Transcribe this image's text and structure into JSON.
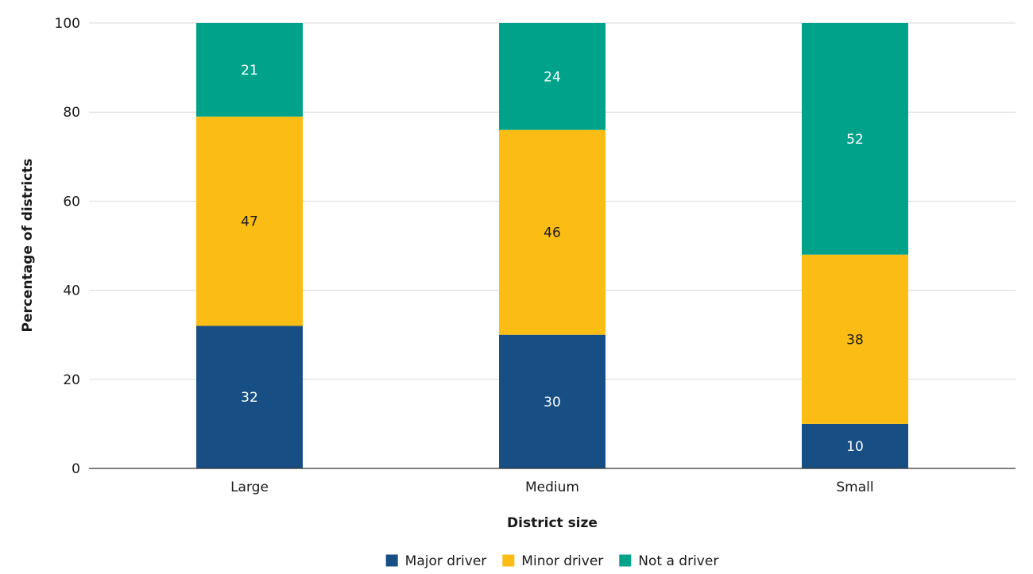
{
  "chart_data": {
    "type": "bar",
    "stacked": true,
    "categories": [
      "Large",
      "Medium",
      "Small"
    ],
    "series": [
      {
        "name": "Major driver",
        "values": [
          32,
          30,
          10
        ],
        "color": "#174f85",
        "label_color": "#ffffff"
      },
      {
        "name": "Minor driver",
        "values": [
          47,
          46,
          38
        ],
        "color": "#fbbd13",
        "label_color": "#1a1a1a"
      },
      {
        "name": "Not a driver",
        "values": [
          21,
          24,
          52
        ],
        "color": "#00a28a",
        "label_color": "#ffffff"
      }
    ],
    "xlabel": "District size",
    "ylabel": "Percentage of districts",
    "ylim": [
      0,
      100
    ],
    "yticks": [
      0,
      20,
      40,
      60,
      80,
      100
    ],
    "grid": true,
    "legend_position": "bottom-center"
  }
}
